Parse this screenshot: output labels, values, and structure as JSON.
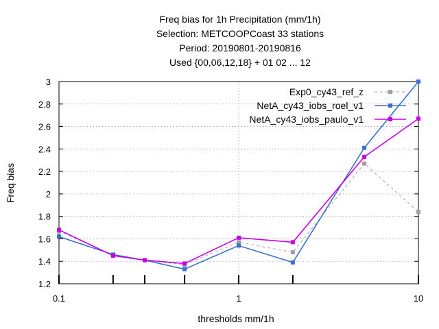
{
  "chart_data": {
    "type": "line",
    "title_lines": [
      "Freq bias  for 1h Precipitation (mm/1h)",
      "Selection: METCOOPCoast     33 stations",
      "Period: 20190801-20190816",
      "Used {00,06,12,18} + 01 02 ... 12"
    ],
    "xlabel": "thresholds mm/1h",
    "ylabel": "Freq bias",
    "xscale": "log",
    "xlim": [
      0.1,
      10
    ],
    "ylim": [
      1.2,
      3.0
    ],
    "x_ticks": [
      0.1,
      1,
      10
    ],
    "x_tick_labels": [
      "0.1",
      "1",
      "10"
    ],
    "x_minor_ticks": [
      0.2,
      0.3,
      0.5,
      2
    ],
    "y_ticks": [
      1.2,
      1.4,
      1.6,
      1.8,
      2.0,
      2.2,
      2.4,
      2.6,
      2.8,
      3.0
    ],
    "y_tick_labels": [
      "1.2",
      "1.4",
      "1.6",
      "1.8",
      "2",
      "2.2",
      "2.4",
      "2.6",
      "2.8",
      "3"
    ],
    "grid": true,
    "legend_position": "top-right",
    "x": [
      0.1,
      0.2,
      0.3,
      0.5,
      1,
      2,
      5,
      10
    ],
    "series": [
      {
        "name": "Exp0_cy43_ref_z",
        "color": "#a0a0a0",
        "dashed": true,
        "values": [
          1.67,
          1.45,
          1.41,
          1.37,
          1.57,
          1.48,
          2.27,
          1.84
        ]
      },
      {
        "name": "NetA_cy43_iobs_roel_v1",
        "color": "#3a6fd0",
        "dashed": false,
        "values": [
          1.62,
          1.46,
          1.41,
          1.33,
          1.54,
          1.39,
          2.41,
          3.0
        ]
      },
      {
        "name": "NetA_cy43_iobs_paulo_v1",
        "color": "#c800e8",
        "dashed": false,
        "values": [
          1.68,
          1.45,
          1.41,
          1.38,
          1.61,
          1.57,
          2.33,
          2.67
        ]
      }
    ]
  }
}
